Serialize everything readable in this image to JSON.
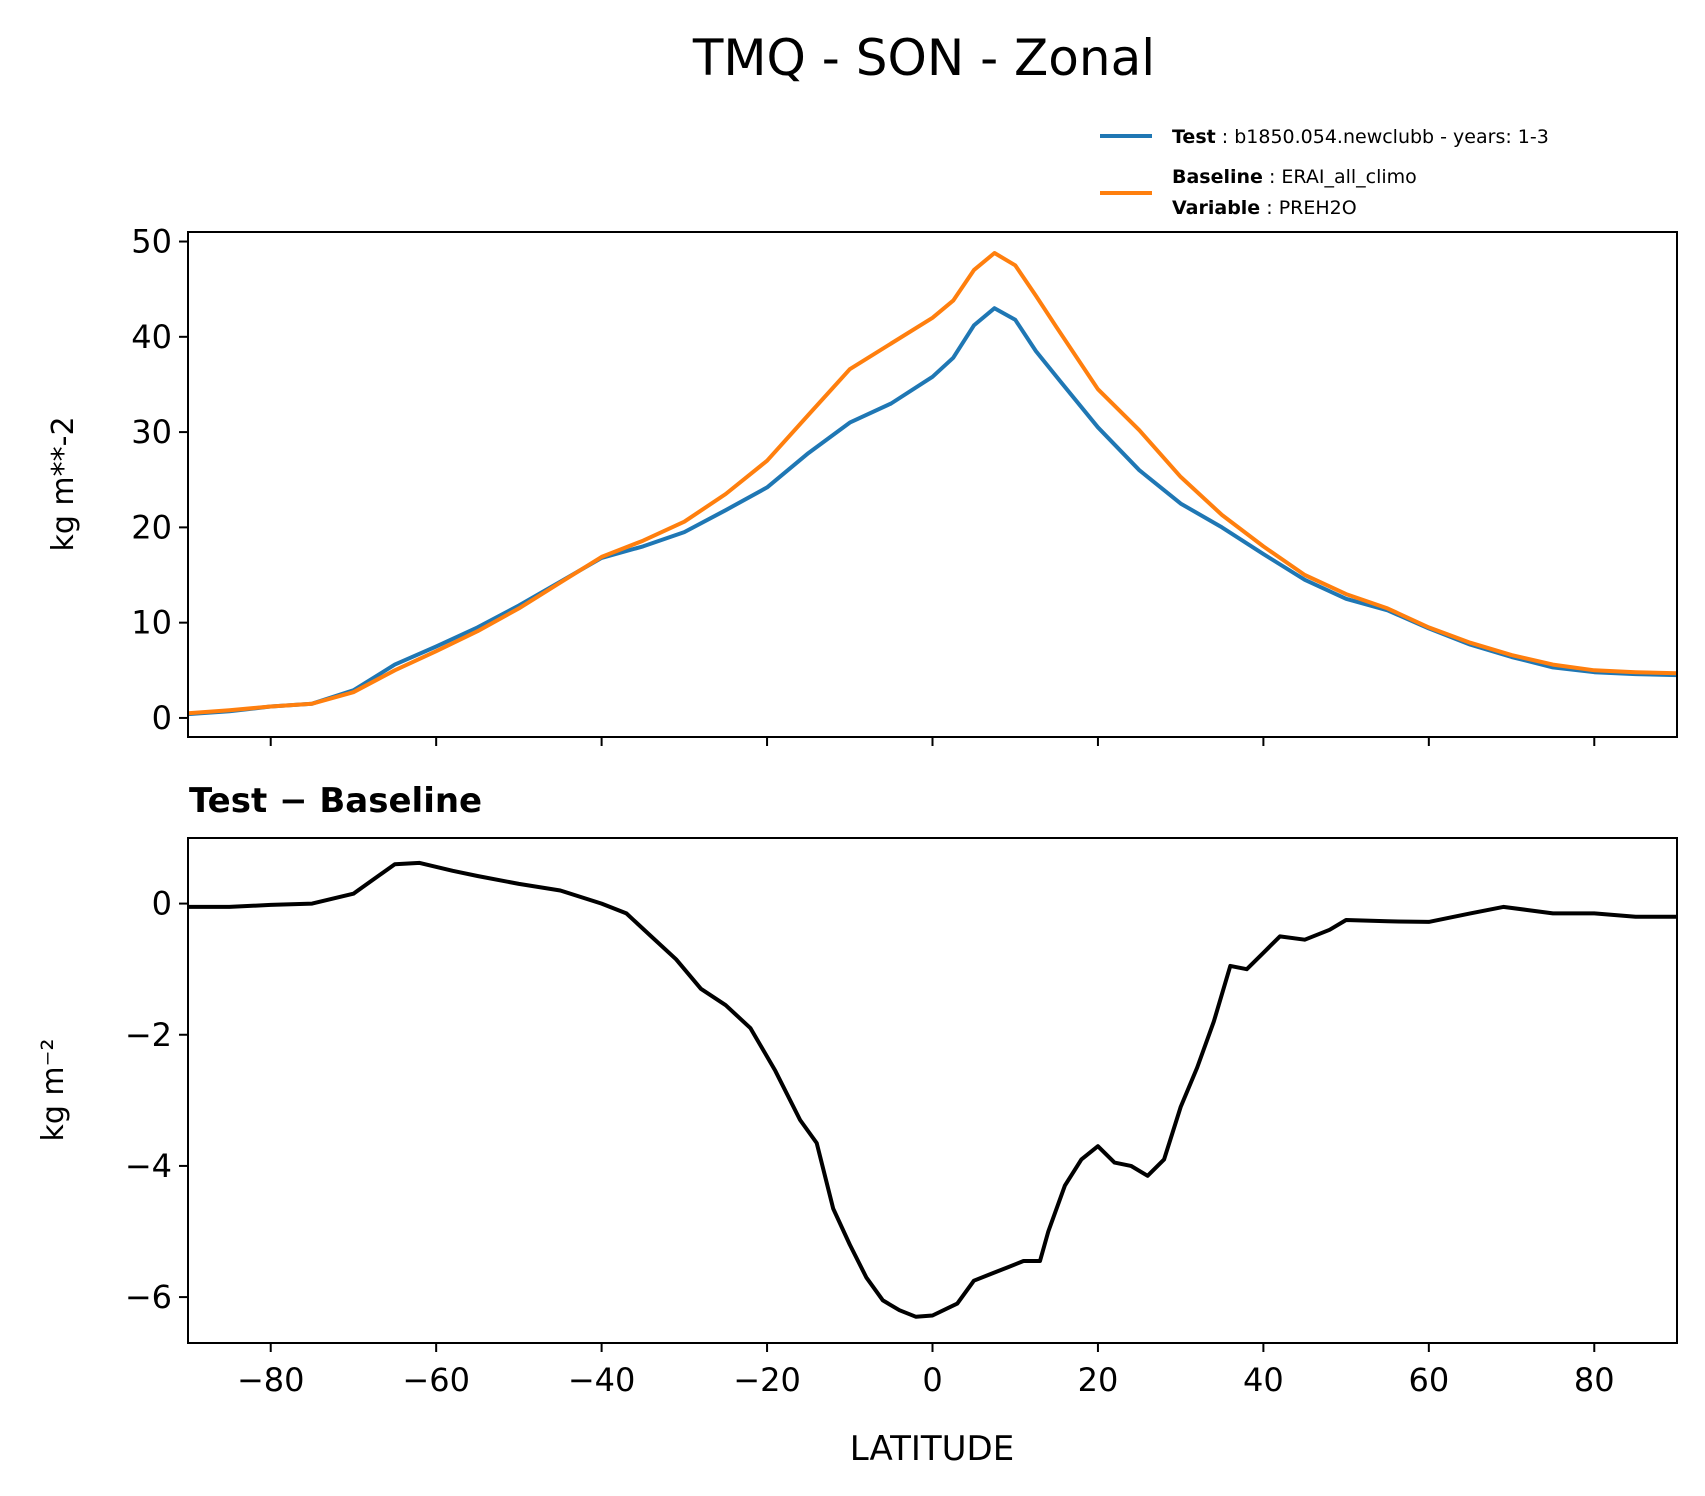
{
  "title": "TMQ - SON - Zonal",
  "legend": {
    "test": {
      "label": "Test",
      "value": "b1850.054.newclubb - years: 1-3",
      "color": "#1f77b4"
    },
    "baseline": {
      "label": "Baseline",
      "value": "ERAI_all_climo",
      "color": "#ff7f0e"
    },
    "variable": {
      "label": "Variable",
      "value": "PREH2O"
    }
  },
  "chart_data": [
    {
      "type": "line",
      "ylabel": "kg m**-2",
      "xlim": [
        -90,
        90
      ],
      "ylim": [
        -2,
        51
      ],
      "yticks": [
        0,
        10,
        20,
        30,
        40,
        50
      ],
      "xticks": [
        -80,
        -60,
        -40,
        -20,
        0,
        20,
        40,
        60,
        80
      ],
      "show_xticklabels": false,
      "x": [
        -90,
        -85,
        -80,
        -75,
        -70,
        -65,
        -60,
        -55,
        -50,
        -45,
        -40,
        -35,
        -30,
        -25,
        -20,
        -15,
        -10,
        -5,
        0,
        2.5,
        5,
        7.5,
        10,
        12.5,
        15,
        20,
        25,
        30,
        35,
        40,
        45,
        50,
        55,
        60,
        65,
        70,
        75,
        80,
        85,
        90
      ],
      "series": [
        {
          "name": "Test",
          "color": "#1f77b4",
          "values": [
            0.4,
            0.7,
            1.2,
            1.5,
            2.9,
            5.6,
            7.5,
            9.5,
            11.8,
            14.3,
            16.8,
            18.0,
            19.5,
            21.8,
            24.2,
            27.8,
            31.0,
            33.0,
            35.8,
            37.8,
            41.2,
            43.0,
            41.8,
            38.5,
            35.8,
            30.5,
            26.0,
            22.5,
            20.0,
            17.2,
            14.5,
            12.5,
            11.3,
            9.4,
            7.7,
            6.4,
            5.3,
            4.8,
            4.6,
            4.5
          ]
        },
        {
          "name": "Baseline",
          "color": "#ff7f0e",
          "values": [
            0.5,
            0.8,
            1.2,
            1.5,
            2.7,
            5.0,
            7.0,
            9.1,
            11.5,
            14.2,
            16.9,
            18.6,
            20.6,
            23.5,
            27.0,
            31.8,
            36.6,
            39.3,
            42.0,
            43.8,
            47.0,
            48.8,
            47.5,
            44.3,
            41.0,
            34.5,
            30.2,
            25.3,
            21.3,
            18.0,
            15.0,
            13.0,
            11.5,
            9.5,
            7.9,
            6.6,
            5.6,
            5.0,
            4.8,
            4.7
          ]
        }
      ]
    },
    {
      "type": "line",
      "title": "Test − Baseline",
      "ylabel": "kg m⁻²",
      "xlabel": "LATITUDE",
      "xlim": [
        -90,
        90
      ],
      "ylim": [
        -6.7,
        1.0
      ],
      "yticks": [
        0,
        -2,
        -4,
        -6
      ],
      "ytick_labels": [
        "0",
        "−2",
        "−4",
        "−6"
      ],
      "xticks": [
        -80,
        -60,
        -40,
        -20,
        0,
        20,
        40,
        60,
        80
      ],
      "xtick_labels": [
        "−80",
        "−60",
        "−40",
        "−20",
        "0",
        "20",
        "40",
        "60",
        "80"
      ],
      "x": [
        -90,
        -85,
        -80,
        -75,
        -70,
        -65,
        -62,
        -58,
        -55,
        -50,
        -45,
        -40,
        -37,
        -34,
        -31,
        -28,
        -25,
        -22,
        -19,
        -16,
        -14,
        -12,
        -10,
        -8,
        -6,
        -4,
        -2,
        0,
        3,
        5,
        7,
        9,
        11,
        13,
        14,
        16,
        18,
        20,
        22,
        24,
        26,
        28,
        30,
        32,
        34,
        36,
        38,
        40,
        42,
        45,
        48,
        50,
        55,
        60,
        65,
        69,
        72,
        75,
        80,
        85,
        90
      ],
      "series": [
        {
          "name": "Test − Baseline",
          "color": "#000000",
          "values": [
            -0.05,
            -0.05,
            -0.02,
            0.0,
            0.15,
            0.6,
            0.62,
            0.5,
            0.42,
            0.3,
            0.2,
            0.0,
            -0.15,
            -0.5,
            -0.85,
            -1.3,
            -1.55,
            -1.9,
            -2.55,
            -3.3,
            -3.65,
            -4.65,
            -5.2,
            -5.7,
            -6.05,
            -6.2,
            -6.3,
            -6.28,
            -6.1,
            -5.75,
            -5.65,
            -5.55,
            -5.45,
            -5.45,
            -5.0,
            -4.3,
            -3.9,
            -3.7,
            -3.95,
            -4.0,
            -4.15,
            -3.9,
            -3.1,
            -2.5,
            -1.8,
            -0.95,
            -1.0,
            -0.75,
            -0.5,
            -0.55,
            -0.4,
            -0.25,
            -0.27,
            -0.28,
            -0.15,
            -0.05,
            -0.1,
            -0.15,
            -0.15,
            -0.2,
            -0.2
          ]
        }
      ]
    }
  ]
}
